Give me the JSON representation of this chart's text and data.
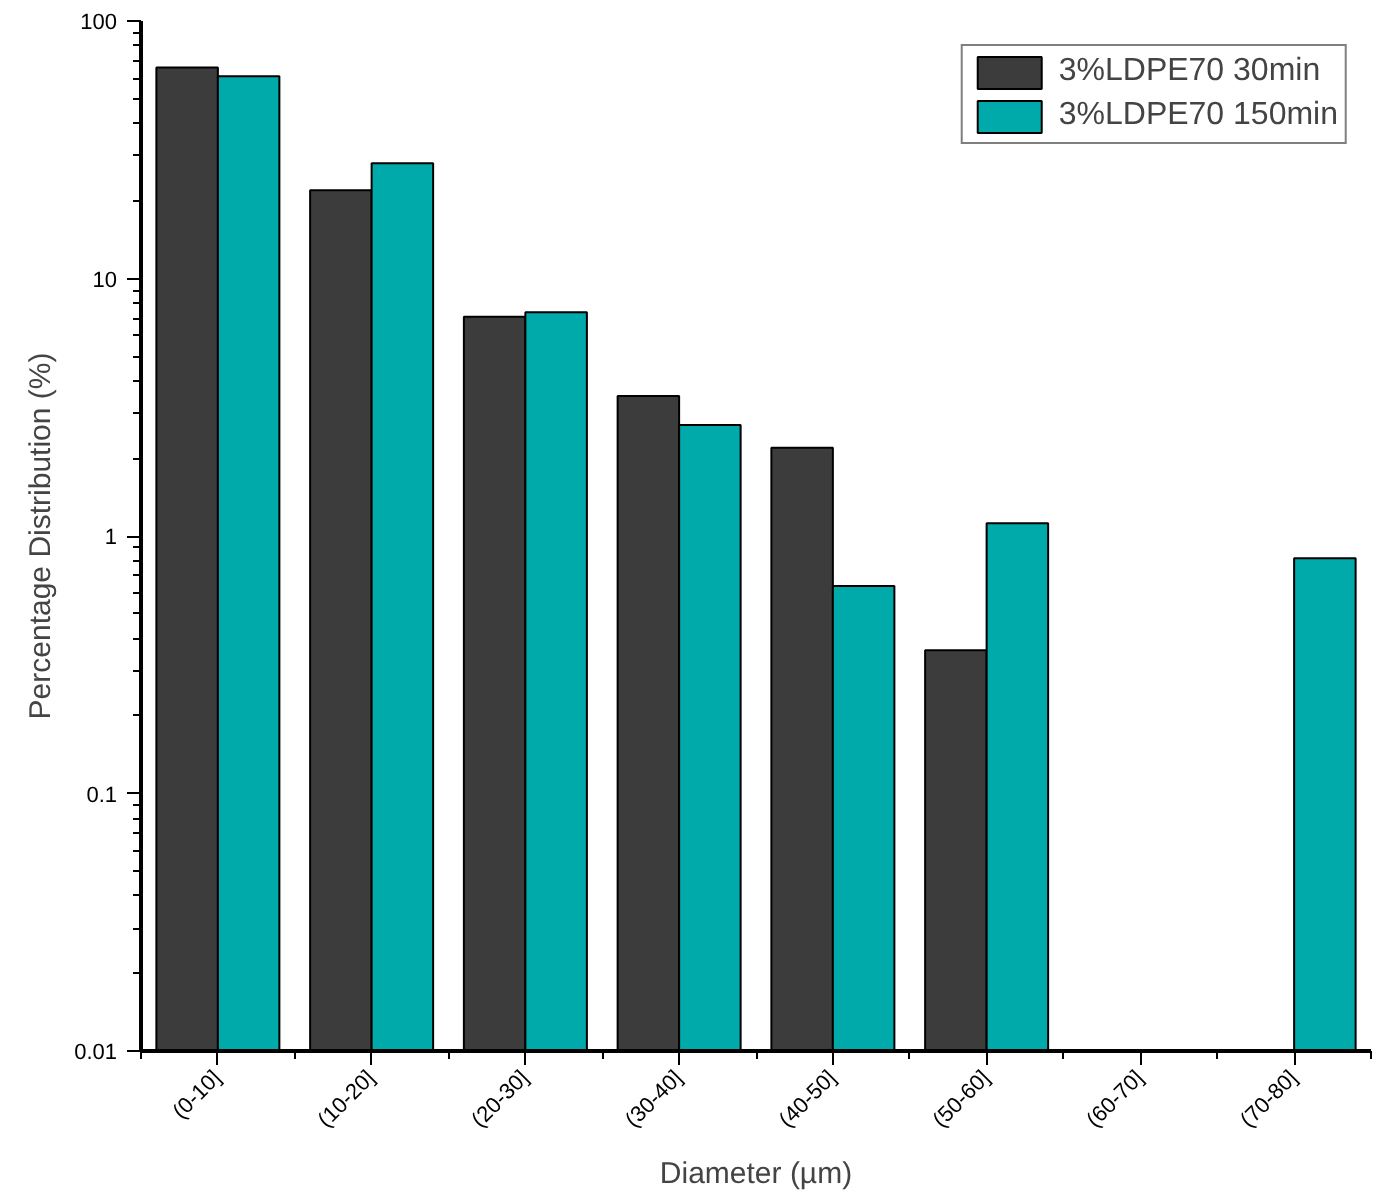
{
  "chart_data": {
    "type": "bar",
    "xlabel": "Diameter (µm)",
    "ylabel": "Percentage Distribution (%)",
    "categories": [
      "(0-10]",
      "(10-20]",
      "(20-30]",
      "(30-40]",
      "(40-50]",
      "(50-60]",
      "(60-70]",
      "(70-80]"
    ],
    "series": [
      {
        "name": "3%LDPE70 30min",
        "color": "#3c3c3c",
        "values": [
          66,
          22,
          7.1,
          3.5,
          2.2,
          0.36,
          null,
          null
        ]
      },
      {
        "name": "3%LDPE70 150min",
        "color": "#00aaaa",
        "values": [
          61,
          28,
          7.4,
          2.7,
          0.64,
          1.12,
          null,
          0.82
        ]
      }
    ],
    "log": "y",
    "ylim": [
      0.01,
      100
    ],
    "yticks": [
      0.01,
      0.1,
      1,
      10,
      100
    ],
    "grid": false,
    "legend": "top right"
  }
}
